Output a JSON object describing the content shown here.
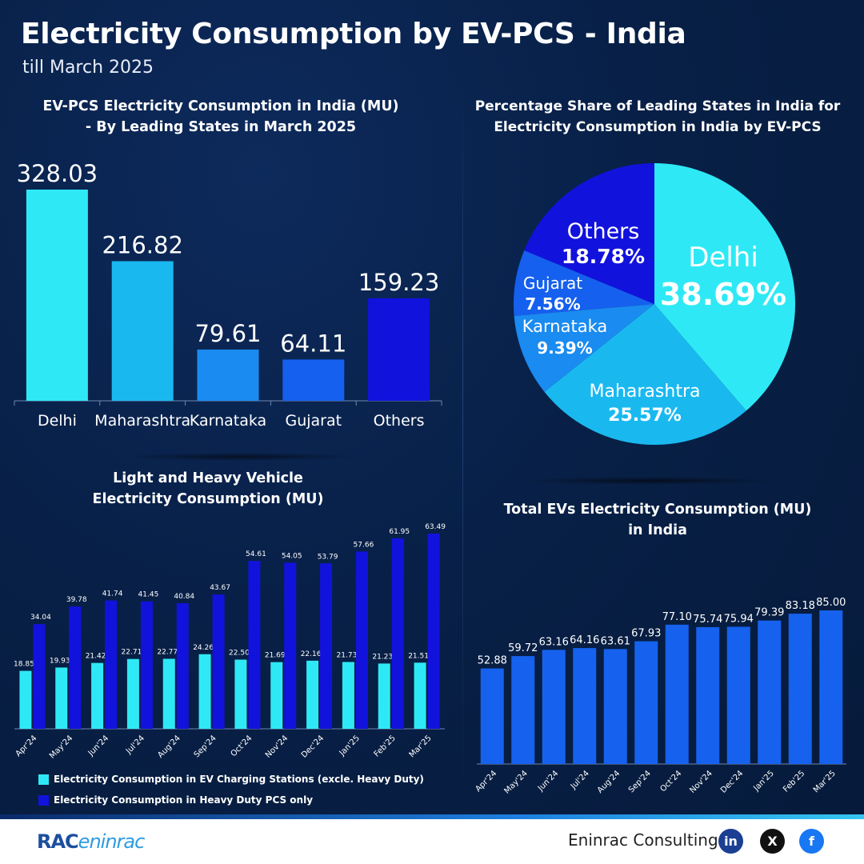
{
  "header": {
    "title": "Electricity Consumption by EV-PCS - India",
    "subtitle": "till March 2025"
  },
  "footer": {
    "brand": "Eninrac Consulting",
    "logo_text": "RACeninrac",
    "social_icons": [
      "linkedin-icon",
      "x-icon",
      "facebook-icon"
    ]
  },
  "colors": {
    "background": "#082047",
    "cyan": "#2ee9f5",
    "light_blue": "#19b9f0",
    "mid_blue": "#1a8bf0",
    "blue": "#1560ee",
    "dark_blue": "#1212dd",
    "total_blue": "#1662ee"
  },
  "chart_data": [
    {
      "type": "bar",
      "title": "EV-PCS Electricity Consumption in India (MU)\n-  By Leading States in March 2025",
      "categories": [
        "Delhi",
        "Maharashtra",
        "Karnataka",
        "Gujarat",
        "Others"
      ],
      "values": [
        328.03,
        216.82,
        79.61,
        64.11,
        159.23
      ],
      "value_labels": [
        "328.03",
        "216.82",
        "79.61",
        "64.11",
        "159.23"
      ],
      "colors": [
        "#2ee9f5",
        "#19b9f0",
        "#1a8bf0",
        "#1560ee",
        "#1212dd"
      ],
      "ylim": [
        0,
        328.03
      ],
      "grid": false
    },
    {
      "type": "pie",
      "title": "Percentage Share of Leading States in India for\nElectricity Consumption in India by EV-PCS",
      "slices": [
        {
          "label": "Delhi",
          "value": 38.69,
          "pct": "38.69%",
          "color": "#2ee9f5"
        },
        {
          "label": "Maharashtra",
          "value": 25.57,
          "pct": "25.57%",
          "color": "#19b9f0"
        },
        {
          "label": "Karnataka",
          "value": 9.39,
          "pct": "9.39%",
          "color": "#1a8bf0"
        },
        {
          "label": "Gujarat",
          "value": 7.56,
          "pct": "7.56%",
          "color": "#1560ee"
        },
        {
          "label": "Others",
          "value": 18.78,
          "pct": "18.78%",
          "color": "#1212dd"
        }
      ]
    },
    {
      "type": "bar",
      "title": "Light and Heavy Vehicle\nElectricity Consumption (MU)",
      "categories": [
        "Apr'24",
        "May'24",
        "Jun'24",
        "Jul'24",
        "Aug'24",
        "Sep'24",
        "Oct'24",
        "Nov'24",
        "Dec'24",
        "Jan'25",
        "Feb'25",
        "Mar'25"
      ],
      "series": [
        {
          "name": "Electricity Consumption in EV Charging Stations (excle. Heavy Duty)",
          "color": "#2ee9f5",
          "values": [
            18.85,
            19.93,
            21.42,
            22.71,
            22.77,
            24.26,
            22.5,
            21.69,
            22.16,
            21.73,
            21.23,
            21.51
          ],
          "labels": [
            "18.85",
            "19.93",
            "21.42",
            "22.71",
            "22.77",
            "24.26",
            "22.50",
            "21.69",
            "22.16",
            "21.73",
            "21.23",
            "21.51"
          ]
        },
        {
          "name": "Electricity Consumption in Heavy Duty PCS only",
          "color": "#1212dd",
          "values": [
            34.04,
            39.78,
            41.74,
            41.45,
            40.84,
            43.67,
            54.61,
            54.05,
            53.79,
            57.66,
            61.95,
            63.49
          ],
          "labels": [
            "34.04",
            "39.78",
            "41.74",
            "41.45",
            "40.84",
            "43.67",
            "54.61",
            "54.05",
            "53.79",
            "57.66",
            "61.95",
            "63.49"
          ]
        }
      ],
      "ylim": [
        0,
        63.49
      ],
      "legend": "bottom-left",
      "grid": false
    },
    {
      "type": "bar",
      "title": "Total EVs Electricity Consumption (MU)\nin India",
      "categories": [
        "Apr'24",
        "May'24",
        "Jun'24",
        "Jul'24",
        "Aug'24",
        "Sep'24",
        "Oct'24",
        "Nov'24",
        "Dec'24",
        "Jan'25",
        "Feb'25",
        "Mar'25"
      ],
      "values": [
        52.88,
        59.72,
        63.16,
        64.16,
        63.61,
        67.93,
        77.1,
        75.74,
        75.94,
        79.39,
        83.18,
        85.0
      ],
      "value_labels": [
        "52.88",
        "59.72",
        "63.16",
        "64.16",
        "63.61",
        "67.93",
        "77.10",
        "75.74",
        "75.94",
        "79.39",
        "83.18",
        "85.00"
      ],
      "ylim": [
        0,
        85.0
      ],
      "grid": false
    }
  ]
}
